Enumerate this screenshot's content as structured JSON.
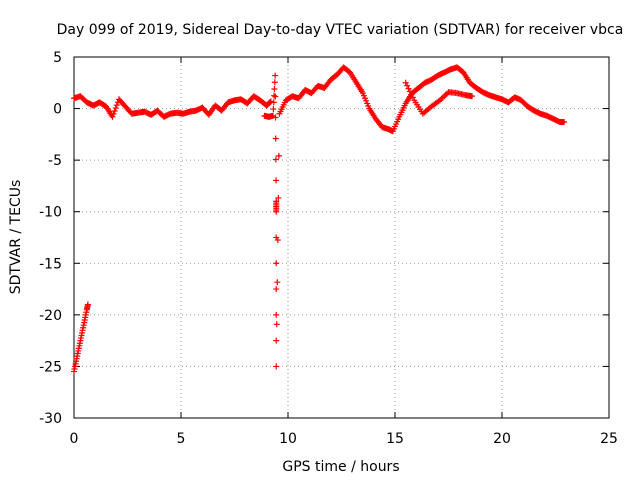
{
  "chart_data": {
    "type": "scatter",
    "title": "Day 099 of 2019, Sidereal Day-to-day VTEC variation (SDTVAR) for receiver vbca",
    "xlabel": "GPS time / hours",
    "ylabel": "SDTVAR / TECUs",
    "xlim": [
      0,
      25
    ],
    "ylim": [
      -30,
      5
    ],
    "xticks": [
      0,
      5,
      10,
      15,
      20,
      25
    ],
    "yticks": [
      5,
      0,
      -5,
      -10,
      -15,
      -20,
      -25,
      -30
    ],
    "grid": true,
    "marker": "+",
    "color": "#ff0000",
    "series": [
      {
        "name": "SDTVAR",
        "x": [
          0.0,
          0.1,
          0.2,
          0.3,
          0.4,
          0.5,
          0.6,
          0.65,
          0.0,
          0.3,
          0.6,
          0.9,
          1.2,
          1.5,
          1.8,
          2.1,
          2.4,
          2.7,
          3.0,
          3.3,
          3.6,
          3.9,
          4.2,
          4.5,
          4.8,
          5.1,
          5.4,
          5.7,
          6.0,
          6.3,
          6.6,
          6.9,
          7.2,
          7.5,
          7.8,
          8.1,
          8.4,
          8.7,
          9.0,
          9.2,
          8.9,
          9.1,
          9.3,
          9.4,
          9.45,
          9.45,
          9.45,
          9.6,
          9.9,
          10.2,
          10.5,
          10.8,
          11.1,
          11.4,
          11.7,
          12.0,
          12.3,
          12.6,
          12.9,
          13.2,
          13.5,
          13.8,
          14.1,
          14.4,
          14.7,
          14.9,
          15.2,
          15.5,
          15.8,
          16.1,
          16.4,
          16.7,
          17.0,
          17.3,
          17.6,
          17.9,
          18.2,
          18.5,
          18.8,
          19.1,
          19.4,
          19.7,
          20.0,
          20.3,
          20.6,
          20.9,
          21.2,
          21.5,
          21.8,
          22.1,
          22.4,
          22.7,
          22.9,
          15.5,
          15.9,
          16.3,
          16.7,
          17.1,
          17.5,
          17.9,
          18.3,
          18.6
        ],
        "y": [
          -25.5,
          -24.5,
          -23.5,
          -22.5,
          -21.5,
          -20.5,
          -19.5,
          -19.0,
          1.0,
          1.2,
          0.6,
          0.3,
          0.6,
          0.2,
          -0.8,
          0.9,
          0.2,
          -0.5,
          -0.4,
          -0.3,
          -0.6,
          -0.2,
          -0.8,
          -0.5,
          -0.4,
          -0.5,
          -0.3,
          -0.2,
          0.1,
          -0.6,
          0.3,
          -0.2,
          0.6,
          0.8,
          0.9,
          0.5,
          1.2,
          0.8,
          0.3,
          0.7,
          -0.7,
          -0.8,
          -0.7,
          3.2,
          -9.0,
          -10.0,
          -25.0,
          -0.5,
          0.8,
          1.2,
          1.0,
          1.8,
          1.5,
          2.2,
          2.0,
          2.8,
          3.3,
          4.0,
          3.5,
          2.5,
          1.5,
          0.0,
          -1.0,
          -1.8,
          -2.0,
          -2.2,
          -0.8,
          0.5,
          1.5,
          2.0,
          2.5,
          2.8,
          3.2,
          3.5,
          3.8,
          4.0,
          3.5,
          2.5,
          2.0,
          1.6,
          1.3,
          1.1,
          0.9,
          0.6,
          1.1,
          0.8,
          0.2,
          -0.2,
          -0.5,
          -0.7,
          -1.0,
          -1.3,
          -1.3,
          2.5,
          0.8,
          -0.5,
          0.2,
          0.8,
          1.6,
          1.5,
          1.3,
          1.2
        ]
      }
    ]
  }
}
